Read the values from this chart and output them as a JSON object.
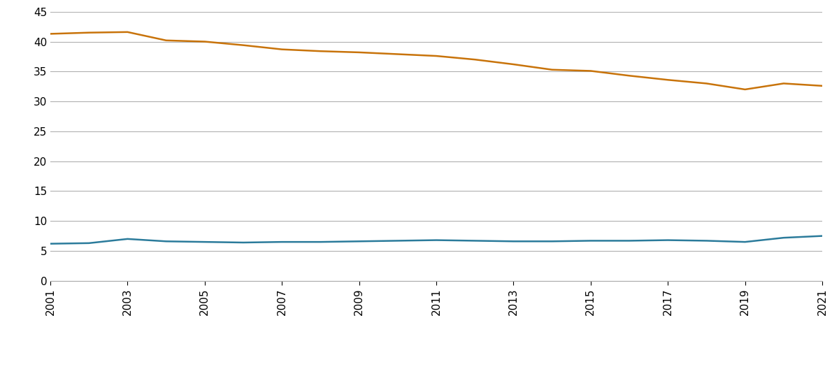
{
  "years": [
    2001,
    2002,
    2003,
    2004,
    2005,
    2006,
    2007,
    2008,
    2009,
    2010,
    2011,
    2012,
    2013,
    2014,
    2015,
    2016,
    2017,
    2018,
    2019,
    2020,
    2021
  ],
  "series_18_29": [
    6.2,
    6.3,
    7.0,
    6.6,
    6.5,
    6.4,
    6.5,
    6.5,
    6.6,
    6.7,
    6.8,
    6.7,
    6.6,
    6.6,
    6.7,
    6.7,
    6.8,
    6.7,
    6.5,
    7.2,
    7.5
  ],
  "series_60_66": [
    41.3,
    41.5,
    41.6,
    40.2,
    40.0,
    39.4,
    38.7,
    38.4,
    38.2,
    37.9,
    37.6,
    37.0,
    36.2,
    35.3,
    35.1,
    34.3,
    33.6,
    33.0,
    32.0,
    33.0,
    32.6
  ],
  "color_18_29": "#2b7b9b",
  "color_60_66": "#c8730a",
  "ylim": [
    0,
    45
  ],
  "yticks": [
    0,
    5,
    10,
    15,
    20,
    25,
    30,
    35,
    40,
    45
  ],
  "xtick_labels": [
    "2001",
    "2003",
    "2005",
    "2007",
    "2009",
    "2011",
    "2013",
    "2015",
    "2017",
    "2019",
    "2021"
  ],
  "xtick_positions": [
    2001,
    2003,
    2005,
    2007,
    2009,
    2011,
    2013,
    2015,
    2017,
    2019,
    2021
  ],
  "background_color": "#ffffff",
  "grid_color": "#b0b0b0",
  "line_width": 1.8
}
